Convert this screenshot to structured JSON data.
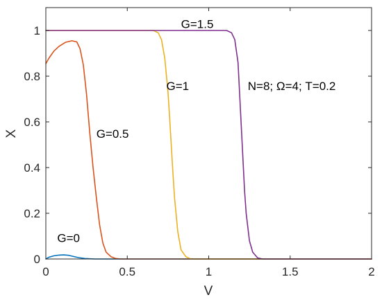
{
  "chart_data": {
    "type": "line",
    "xlabel": "V",
    "ylabel": "X",
    "xlim": [
      0,
      2
    ],
    "ylim": [
      0,
      1.1
    ],
    "x_ticks": [
      0,
      0.5,
      1,
      1.5,
      2
    ],
    "x_tick_labels": [
      "0",
      "0.5",
      "1",
      "1.5",
      "2"
    ],
    "y_ticks": [
      0,
      0.2,
      0.4,
      0.6,
      0.8,
      1
    ],
    "y_tick_labels": [
      "0",
      "0.2",
      "0.4",
      "0.6",
      "0.8",
      "1"
    ],
    "grid": false,
    "legend": "none",
    "series": [
      {
        "name": "G=0",
        "color": "#0072BD",
        "points": [
          [
            0,
            0.0
          ],
          [
            0.02,
            0.008
          ],
          [
            0.05,
            0.014
          ],
          [
            0.08,
            0.017
          ],
          [
            0.11,
            0.018
          ],
          [
            0.14,
            0.016
          ],
          [
            0.17,
            0.011
          ],
          [
            0.2,
            0.006
          ],
          [
            0.24,
            0.002
          ],
          [
            0.3,
            0.0
          ],
          [
            0.5,
            0.0
          ],
          [
            1.0,
            0.0
          ],
          [
            1.5,
            0.0
          ],
          [
            2.0,
            0.0
          ]
        ]
      },
      {
        "name": "G=0.5",
        "color": "#D95319",
        "points": [
          [
            0,
            0.855
          ],
          [
            0.02,
            0.88
          ],
          [
            0.05,
            0.91
          ],
          [
            0.08,
            0.93
          ],
          [
            0.12,
            0.948
          ],
          [
            0.16,
            0.955
          ],
          [
            0.19,
            0.95
          ],
          [
            0.21,
            0.92
          ],
          [
            0.23,
            0.85
          ],
          [
            0.25,
            0.72
          ],
          [
            0.27,
            0.55
          ],
          [
            0.29,
            0.4
          ],
          [
            0.31,
            0.27
          ],
          [
            0.33,
            0.15
          ],
          [
            0.35,
            0.07
          ],
          [
            0.37,
            0.03
          ],
          [
            0.4,
            0.01
          ],
          [
            0.43,
            0.002
          ],
          [
            0.46,
            0.0
          ],
          [
            1.0,
            0.0
          ],
          [
            2.0,
            0.0
          ]
        ]
      },
      {
        "name": "G=1",
        "color": "#EDB120",
        "points": [
          [
            0,
            1.0
          ],
          [
            0.5,
            1.0
          ],
          [
            0.66,
            1.0
          ],
          [
            0.69,
            0.99
          ],
          [
            0.71,
            0.96
          ],
          [
            0.73,
            0.88
          ],
          [
            0.75,
            0.73
          ],
          [
            0.76,
            0.62
          ],
          [
            0.77,
            0.5
          ],
          [
            0.78,
            0.38
          ],
          [
            0.79,
            0.27
          ],
          [
            0.81,
            0.12
          ],
          [
            0.83,
            0.04
          ],
          [
            0.86,
            0.01
          ],
          [
            0.89,
            0.0
          ],
          [
            1.5,
            0.0
          ],
          [
            2.0,
            0.0
          ]
        ]
      },
      {
        "name": "G=1.5",
        "color": "#7E2F8E",
        "points": [
          [
            0,
            1.0
          ],
          [
            0.5,
            1.0
          ],
          [
            1.0,
            1.0
          ],
          [
            1.11,
            1.0
          ],
          [
            1.14,
            0.99
          ],
          [
            1.16,
            0.96
          ],
          [
            1.18,
            0.86
          ],
          [
            1.19,
            0.72
          ],
          [
            1.2,
            0.58
          ],
          [
            1.21,
            0.44
          ],
          [
            1.22,
            0.3
          ],
          [
            1.23,
            0.2
          ],
          [
            1.25,
            0.08
          ],
          [
            1.27,
            0.03
          ],
          [
            1.3,
            0.005
          ],
          [
            1.33,
            0.0
          ],
          [
            2.0,
            0.0
          ]
        ]
      }
    ],
    "annotations": [
      {
        "text": "G=0",
        "x": 0.07,
        "y": 0.075
      },
      {
        "text": "G=0.5",
        "x": 0.31,
        "y": 0.53
      },
      {
        "text": "G=1",
        "x": 0.74,
        "y": 0.74
      },
      {
        "text": "G=1.5",
        "x": 0.83,
        "y": 1.01
      },
      {
        "text": "N=8; Ω=4; T=0.2",
        "x": 1.24,
        "y": 0.74
      }
    ]
  }
}
